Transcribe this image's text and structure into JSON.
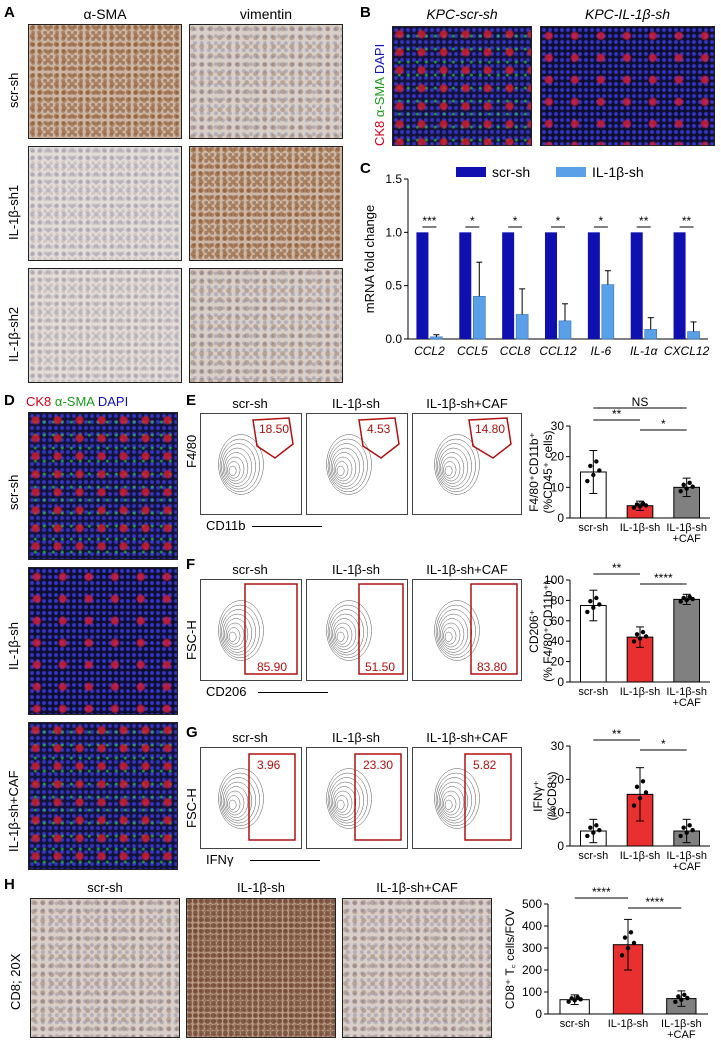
{
  "panels": {
    "A": {
      "label": "A",
      "col_titles": [
        "α-SMA",
        "vimentin"
      ],
      "row_labels": [
        "scr-sh",
        "IL-1β-sh1",
        "IL-1β-sh2"
      ]
    },
    "B": {
      "label": "B",
      "titles": [
        "KPC-scr-sh",
        "KPC-IL-1β-sh"
      ],
      "stain": {
        "ck8": "CK8",
        "asma": "α-SMA",
        "dapi": "DAPI"
      }
    },
    "C": {
      "label": "C",
      "legend": [
        "scr-sh",
        "IL-1β-sh"
      ],
      "ylabel": "mRNA fold change"
    },
    "D": {
      "label": "D",
      "stain": {
        "ck8": "CK8",
        "asma": "α-SMA",
        "dapi": "DAPI"
      },
      "row_labels": [
        "scr-sh",
        "IL-1β-sh",
        "IL-1β-sh+CAF"
      ]
    },
    "E": {
      "label": "E",
      "titles": [
        "scr-sh",
        "IL-1β-sh",
        "IL-1β-sh+CAF"
      ],
      "gate_values": [
        "18.50",
        "4.53",
        "14.80"
      ],
      "yaxis": "F4/80",
      "xaxis": "CD11b"
    },
    "F": {
      "label": "F",
      "titles": [
        "scr-sh",
        "IL-1β-sh",
        "IL-1β-sh+CAF"
      ],
      "gate_values": [
        "85.90",
        "51.50",
        "83.80"
      ],
      "yaxis": "FSC-H",
      "xaxis": "CD206"
    },
    "G": {
      "label": "G",
      "titles": [
        "scr-sh",
        "IL-1β-sh",
        "IL-1β-sh+CAF"
      ],
      "gate_values": [
        "3.96",
        "23.30",
        "5.82"
      ],
      "yaxis": "FSC-H",
      "xaxis": "IFNγ"
    },
    "H": {
      "label": "H",
      "titles": [
        "scr-sh",
        "IL-1β-sh",
        "IL-1β-sh+CAF"
      ],
      "row_label": "CD8; 20X"
    }
  },
  "chart_data": [
    {
      "id": "C",
      "type": "bar",
      "categories": [
        "CCL2",
        "CCL5",
        "CCL8",
        "CCL12",
        "IL-6",
        "IL-1α",
        "CXCL12"
      ],
      "series": [
        {
          "name": "scr-sh",
          "values": [
            1,
            1,
            1,
            1,
            1,
            1,
            1
          ],
          "color": "#1010b0"
        },
        {
          "name": "IL-1β-sh",
          "values": [
            0.02,
            0.4,
            0.23,
            0.17,
            0.51,
            0.09,
            0.07
          ],
          "errors": [
            0.02,
            0.32,
            0.24,
            0.16,
            0.13,
            0.11,
            0.09
          ],
          "color": "#5aa0e8"
        }
      ],
      "significance": [
        "***",
        "*",
        "*",
        "*",
        "*",
        "**",
        "**"
      ],
      "ylabel": "mRNA fold change",
      "ylim": [
        0,
        1.5
      ],
      "yticks": [
        "0.0",
        "0.5",
        "1.0",
        "1.5"
      ]
    },
    {
      "id": "E",
      "type": "bar",
      "categories": [
        "scr-sh",
        "IL-1β-sh",
        "IL-1β-sh +CAF"
      ],
      "values": [
        15,
        4,
        10
      ],
      "errors": [
        7,
        1.5,
        3
      ],
      "colors": [
        "#ffffff",
        "#e83030",
        "#808080"
      ],
      "ylabel_lines": [
        "F4/80⁺CD11b⁺",
        "(%CD45⁺ cells)"
      ],
      "ylim": [
        0,
        30
      ],
      "yticks": [
        "0",
        "10",
        "20",
        "30"
      ],
      "comparisons": [
        {
          "from": 0,
          "to": 1,
          "label": "**"
        },
        {
          "from": 0,
          "to": 2,
          "label": "NS"
        },
        {
          "from": 1,
          "to": 2,
          "label": "*"
        }
      ]
    },
    {
      "id": "F",
      "type": "bar",
      "categories": [
        "scr-sh",
        "IL-1β-sh",
        "IL-1β-sh +CAF"
      ],
      "values": [
        75,
        44,
        81
      ],
      "errors": [
        15,
        10,
        5
      ],
      "colors": [
        "#ffffff",
        "#e83030",
        "#808080"
      ],
      "ylabel_lines": [
        "CD206⁺",
        "(% F4/80⁺CD11b⁺)"
      ],
      "ylim": [
        0,
        100
      ],
      "yticks": [
        "0",
        "20",
        "40",
        "60",
        "80",
        "100"
      ],
      "comparisons": [
        {
          "from": 0,
          "to": 1,
          "label": "**"
        },
        {
          "from": 1,
          "to": 2,
          "label": "****"
        }
      ]
    },
    {
      "id": "G",
      "type": "bar",
      "categories": [
        "scr-sh",
        "IL-1β-sh",
        "IL-1β-sh +CAF"
      ],
      "values": [
        4.5,
        15.5,
        4.5
      ],
      "errors": [
        3.5,
        8,
        3.5
      ],
      "colors": [
        "#ffffff",
        "#e83030",
        "#808080"
      ],
      "ylabel_lines": [
        "IFNγ⁺",
        "(%CD8⁺)"
      ],
      "ylim": [
        0,
        30
      ],
      "yticks": [
        "0",
        "10",
        "20",
        "30"
      ],
      "comparisons": [
        {
          "from": 0,
          "to": 1,
          "label": "**"
        },
        {
          "from": 1,
          "to": 2,
          "label": "*"
        }
      ]
    },
    {
      "id": "H",
      "type": "bar",
      "categories": [
        "scr-sh",
        "IL-1β-sh",
        "IL-1β-sh +CAF"
      ],
      "values": [
        65,
        315,
        70
      ],
      "errors": [
        22,
        115,
        35
      ],
      "colors": [
        "#ffffff",
        "#e83030",
        "#808080"
      ],
      "ylabel_lines": [
        "CD8⁺ T꜀ cells/FOV"
      ],
      "ylim": [
        0,
        500
      ],
      "yticks": [
        "0",
        "100",
        "200",
        "300",
        "400",
        "500"
      ],
      "comparisons": [
        {
          "from": 0,
          "to": 1,
          "label": "****"
        },
        {
          "from": 1,
          "to": 2,
          "label": "****"
        }
      ]
    }
  ]
}
